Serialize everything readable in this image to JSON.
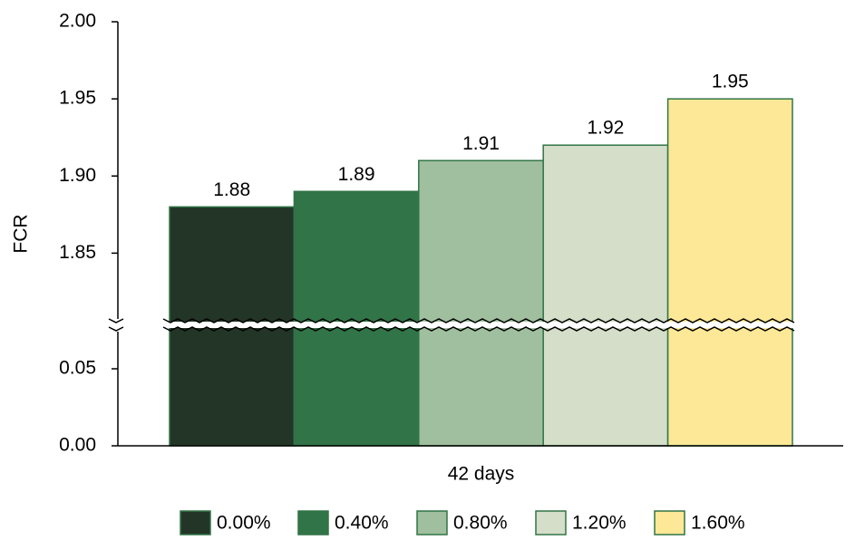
{
  "chart_data": {
    "type": "bar",
    "ylabel": "FCR",
    "categories": [
      "42 days"
    ],
    "series": [
      {
        "name": "0.00%",
        "color": "#233527",
        "values": [
          1.88
        ]
      },
      {
        "name": "0.40%",
        "color": "#317447",
        "values": [
          1.89
        ]
      },
      {
        "name": "0.80%",
        "color": "#a0bf9e",
        "values": [
          1.91
        ]
      },
      {
        "name": "1.20%",
        "color": "#d4dec8",
        "values": [
          1.92
        ]
      },
      {
        "name": "1.60%",
        "color": "#fce896",
        "values": [
          1.95
        ]
      }
    ],
    "ylim_lower": [
      0,
      0.075
    ],
    "ylim_upper": [
      1.8,
      2.0
    ],
    "yticks": [
      {
        "value": 0,
        "label": "0.00"
      },
      0.05,
      1.85,
      {
        "value": 1.9,
        "label": "1.90"
      },
      1.95,
      {
        "value": 2.0,
        "label": "2.00"
      }
    ],
    "legend": "bottom"
  }
}
